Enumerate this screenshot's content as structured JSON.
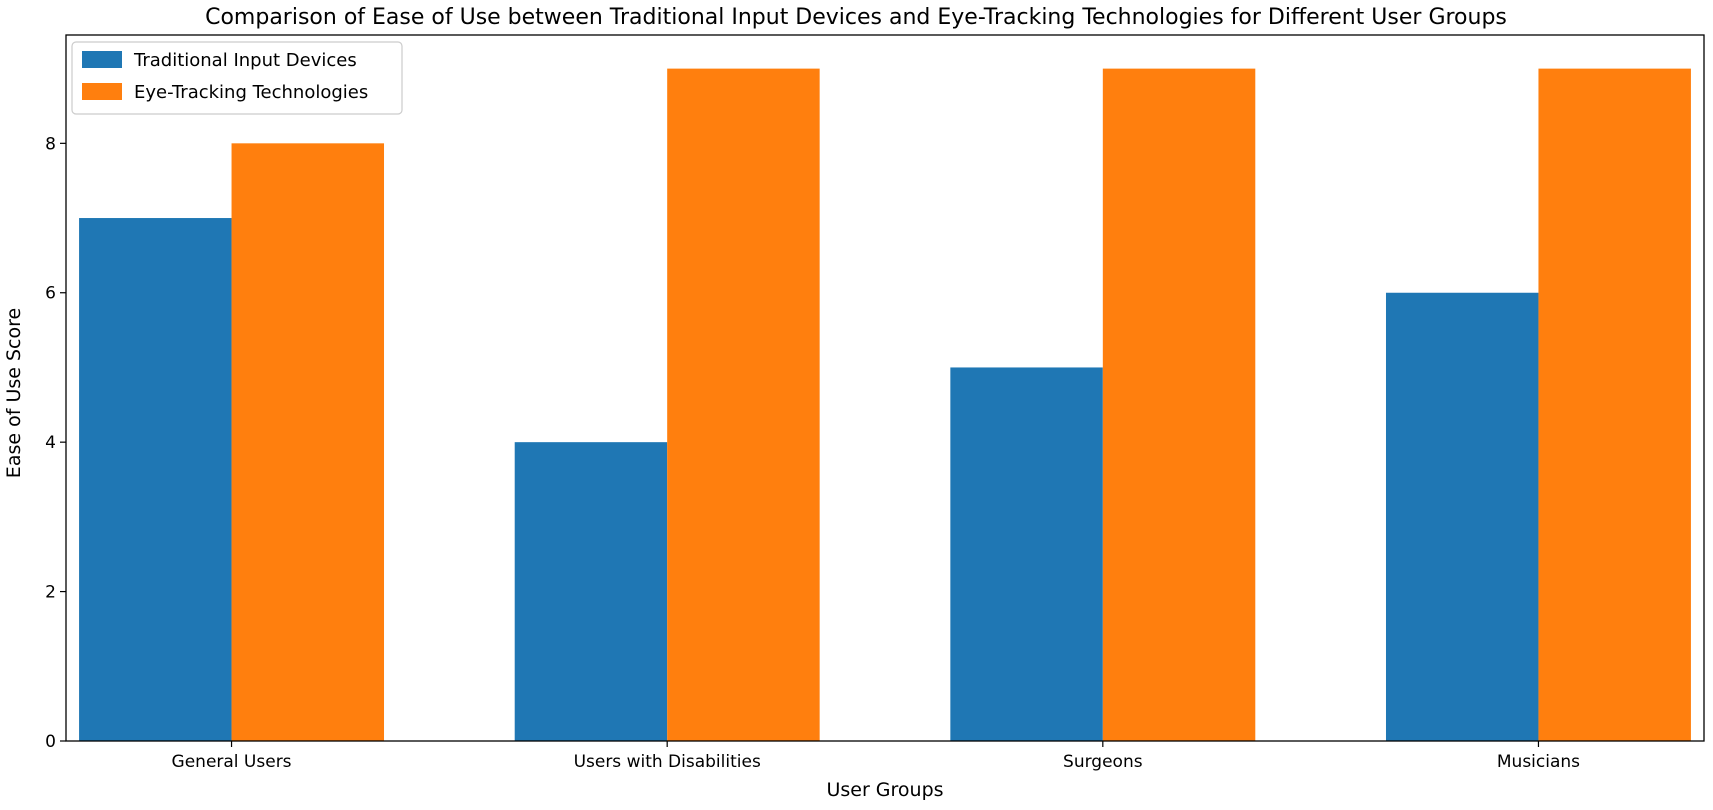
{
  "chart_data": {
    "type": "bar",
    "title": "Comparison of Ease of Use between Traditional Input Devices and Eye-Tracking Technologies for Different User Groups",
    "xlabel": "User Groups",
    "ylabel": "Ease of Use Score",
    "categories": [
      "General Users",
      "Users with Disabilities",
      "Surgeons",
      "Musicians"
    ],
    "series": [
      {
        "name": "Traditional Input Devices",
        "values": [
          7,
          4,
          5,
          6
        ],
        "color": "#1f77b4"
      },
      {
        "name": "Eye-Tracking Technologies",
        "values": [
          8,
          9,
          9,
          9
        ],
        "color": "#ff7f0e"
      }
    ],
    "ylim": [
      0,
      9.45
    ],
    "yticks": [
      "0",
      "2",
      "4",
      "6",
      "8"
    ],
    "grid": false,
    "legend_position": "top-left"
  }
}
